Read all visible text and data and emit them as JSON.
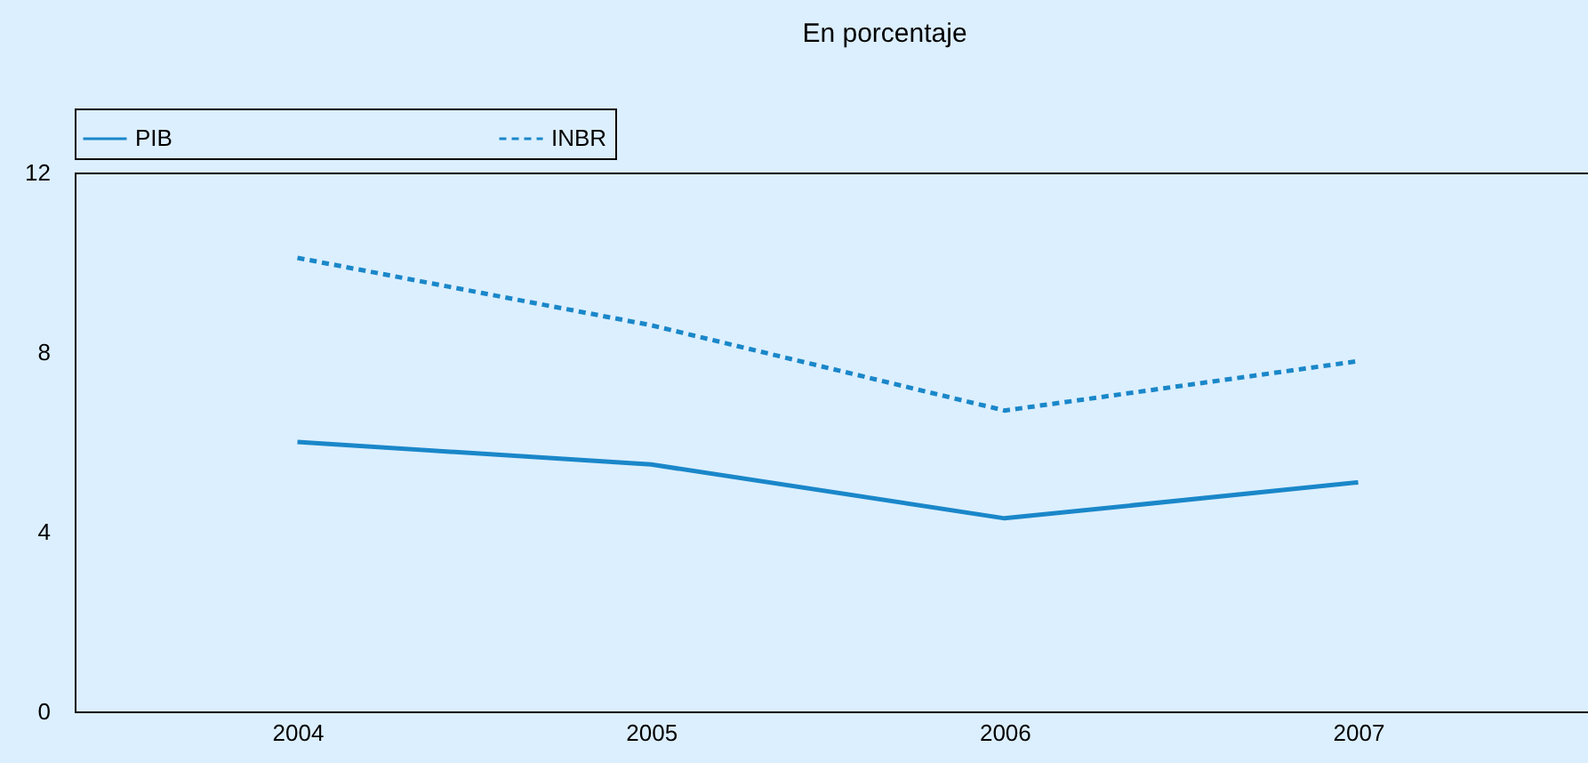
{
  "chart_data": {
    "type": "line",
    "title": "En porcentaje",
    "categories": [
      "2004",
      "2005",
      "2006",
      "2007"
    ],
    "series": [
      {
        "name": "PIB",
        "color": "#1a87c9",
        "line_style": "solid",
        "values": [
          6.0,
          5.5,
          4.3,
          5.1
        ]
      },
      {
        "name": "INBR",
        "color": "#1a87c9",
        "line_style": "dashed",
        "values": [
          10.1,
          8.6,
          6.7,
          7.8
        ]
      }
    ],
    "ylim": [
      0,
      12
    ],
    "yticks": [
      0,
      4,
      8,
      12
    ],
    "grid": false,
    "legend": "top"
  }
}
